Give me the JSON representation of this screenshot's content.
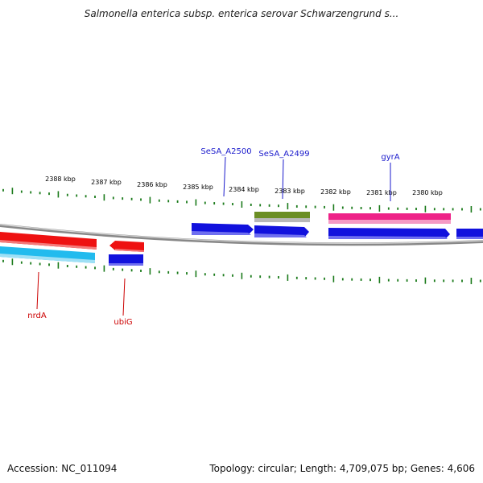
{
  "title": "Salmonella enterica subsp. enterica serovar Schwarzengrund s...",
  "footer": {
    "accession": "Accession: NC_011094",
    "summary": "Topology: circular; Length: 4,709,075 bp; Genes: 4,606"
  },
  "kbp_labels": [
    "2388 kbp",
    "2387 kbp",
    "2386 kbp",
    "2385 kbp",
    "2384 kbp",
    "2383 kbp",
    "2382 kbp",
    "2381 kbp",
    "2380 kbp"
  ],
  "gene_labels": {
    "top": [
      "SeSA_A2500",
      "SeSA_A2499",
      "gyrA"
    ],
    "bottom": [
      "nrdA",
      "ubiG"
    ]
  },
  "colors": {
    "label_blue": "#1a1acc",
    "label_red": "#cc0000",
    "tick_green": "#1a7a1a",
    "gene_red": "#ee1111",
    "gene_cyan": "#22bbee",
    "gene_blue": "#1111dd",
    "gene_olive": "#6b8e23",
    "gene_pink": "#ee2288",
    "backbone": "#888888"
  }
}
